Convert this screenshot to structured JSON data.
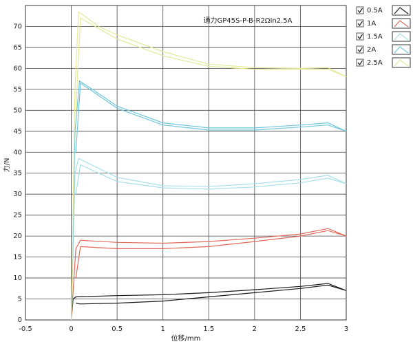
{
  "chart_data": {
    "type": "line",
    "annotation": "通力GP45S-P-B-R2ΩIn2.5A",
    "x_label": "位移/mm",
    "y_label": "力/N",
    "xlim": [
      -0.5,
      3
    ],
    "xticks": [
      -0.5,
      0,
      0.5,
      1,
      1.5,
      2,
      2.5,
      3
    ],
    "ylim": [
      0,
      75
    ],
    "yticks": [
      0,
      5,
      10,
      15,
      20,
      25,
      30,
      35,
      40,
      45,
      50,
      55,
      60,
      65,
      70
    ],
    "grid": true,
    "legend": "right",
    "series": [
      {
        "name": "0.5A",
        "color": "#1a1a1a",
        "x": [
          0,
          0.02,
          0.05,
          0.5,
          1,
          1.5,
          2,
          2.5,
          2.8,
          3,
          2.8,
          2.5,
          2,
          1.5,
          1,
          0.5,
          0.1,
          0.05
        ],
        "values": [
          0,
          5,
          5.5,
          5.8,
          6,
          6.5,
          7.2,
          8,
          8.7,
          7,
          8.3,
          7.5,
          6.5,
          5.5,
          4.5,
          4,
          3.8,
          4
        ]
      },
      {
        "name": "1A",
        "color": "#e06a5a",
        "x": [
          0,
          0.05,
          0.1,
          0.5,
          1,
          1.5,
          2,
          2.5,
          2.8,
          3,
          2.8,
          2.5,
          2,
          1.5,
          1,
          0.5,
          0.1,
          0.05
        ],
        "values": [
          0,
          17,
          19,
          18.5,
          18.3,
          18.7,
          19.5,
          20.5,
          21.8,
          20,
          21.3,
          20,
          18.7,
          17.5,
          17,
          17,
          17.5,
          10
        ]
      },
      {
        "name": "1.5A",
        "color": "#a8e0e8",
        "x": [
          0,
          0.04,
          0.08,
          0.5,
          1,
          1.5,
          2,
          2.5,
          2.8,
          3,
          2.8,
          2.5,
          2,
          1.5,
          1,
          0.5,
          0.1,
          0.05
        ],
        "values": [
          0,
          35,
          38.5,
          34,
          32,
          31.8,
          32.5,
          33.5,
          34.5,
          32.5,
          33.8,
          32.7,
          31.7,
          31.2,
          31.5,
          33,
          37,
          30
        ]
      },
      {
        "name": "2A",
        "color": "#72c6dc",
        "x": [
          0,
          0.04,
          0.09,
          0.3,
          0.5,
          1,
          1.5,
          2,
          2.5,
          2.8,
          3,
          2.8,
          2.5,
          2,
          1.5,
          1,
          0.5,
          0.1,
          0.05
        ],
        "values": [
          0,
          45,
          57,
          54,
          51,
          47,
          45.8,
          45.8,
          46.5,
          47,
          45,
          46.5,
          46,
          45.3,
          45.3,
          46.5,
          50.5,
          56.5,
          40
        ]
      },
      {
        "name": "2.5A",
        "color": "#e4ea9a",
        "x": [
          0,
          0.04,
          0.08,
          0.3,
          0.5,
          1,
          1.5,
          2,
          2.5,
          2.8,
          3,
          2.8,
          2.5,
          2,
          1.5,
          1,
          0.5,
          0.1,
          0.05
        ],
        "values": [
          0,
          55,
          73.5,
          70,
          68,
          64,
          61,
          60.2,
          60,
          60.2,
          58,
          59.8,
          59.8,
          59.8,
          60.5,
          63,
          67,
          72,
          50
        ]
      }
    ]
  }
}
